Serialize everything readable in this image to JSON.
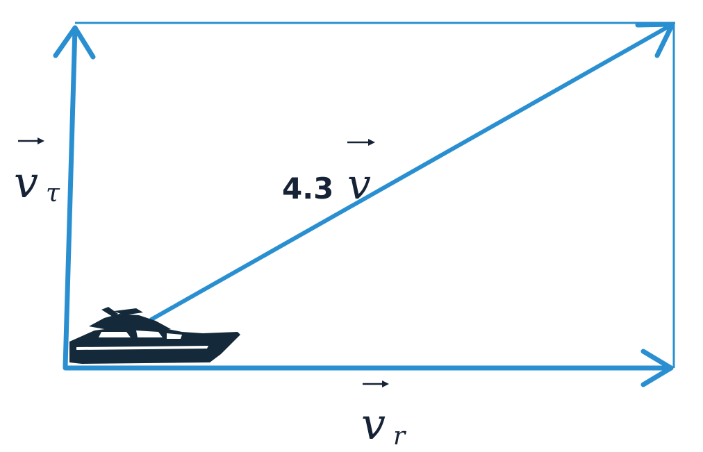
{
  "diagram": {
    "labels": {
      "v_tau": {
        "base": "v",
        "sub": "τ"
      },
      "v_r": {
        "base": "v",
        "sub": "r"
      },
      "v_result": {
        "coefficient": "4.3",
        "base": "v"
      }
    },
    "colors": {
      "vector": "#2a8fd0",
      "text": "#162235",
      "boat": "#142a3a",
      "background": "#ffffff"
    },
    "icons": [
      "boat-icon"
    ]
  }
}
